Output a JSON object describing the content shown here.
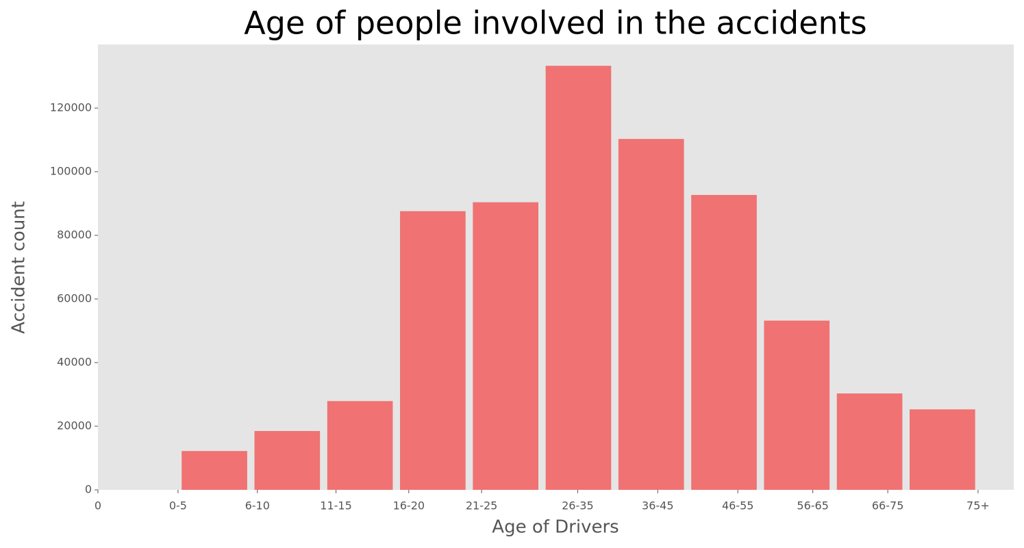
{
  "chart_data": {
    "type": "bar",
    "title": "Age of people involved in the accidents",
    "xlabel": "Age of Drivers",
    "ylabel": "Accident count",
    "x": [
      1.6,
      2.6,
      3.6,
      4.6,
      5.6,
      6.6,
      7.6,
      8.6,
      9.6,
      10.6,
      11.6
    ],
    "bar_width": 0.9,
    "values": [
      12200,
      18500,
      27900,
      87600,
      90400,
      133300,
      110300,
      92700,
      53200,
      30300,
      25300
    ],
    "color": "#f07272",
    "xlim": [
      0,
      12.58
    ],
    "xticks": [
      0,
      {
        "value": 1.1,
        "label": "0-5"
      },
      {
        "value": 2.19,
        "label": "6-10"
      },
      {
        "value": 3.27,
        "label": "11-15"
      },
      {
        "value": 4.27,
        "label": "16-20"
      },
      {
        "value": 5.27,
        "label": "21-25"
      },
      {
        "value": 6.59,
        "label": "26-35"
      },
      {
        "value": 7.69,
        "label": "36-45"
      },
      {
        "value": 8.79,
        "label": "46-55"
      },
      {
        "value": 9.82,
        "label": "56-65"
      },
      {
        "value": 10.85,
        "label": "66-75"
      },
      {
        "value": 12.09,
        "label": "75+"
      }
    ],
    "ylim": [
      0,
      140000
    ],
    "yticks": [
      0,
      20000,
      40000,
      60000,
      80000,
      100000,
      120000
    ],
    "grid": false
  }
}
